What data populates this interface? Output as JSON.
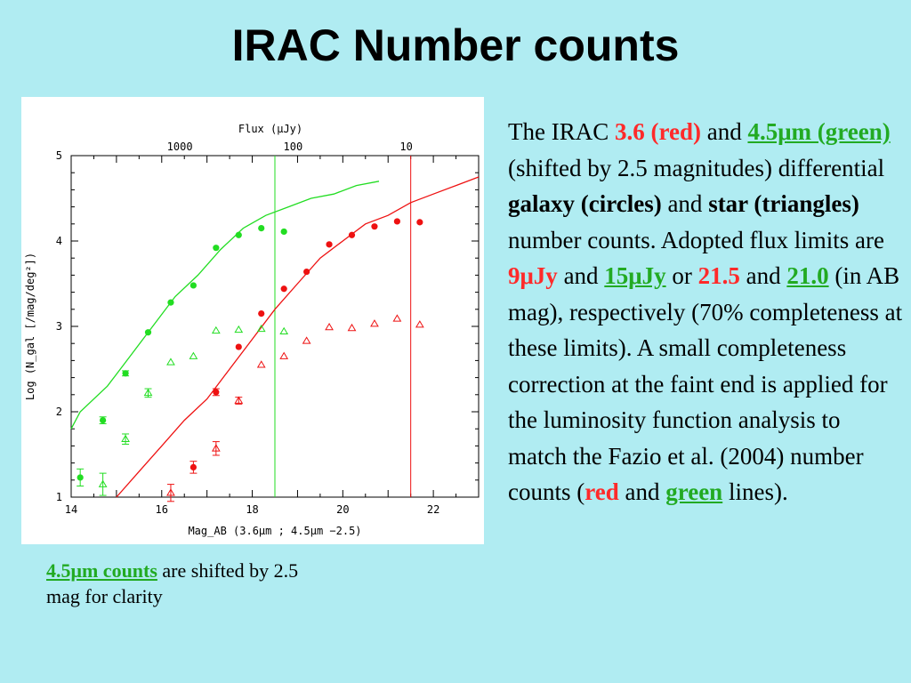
{
  "title": "IRAC Number counts",
  "caption": {
    "highlight": "4.5μm counts",
    "rest": " are shifted by 2.5 mag for clarity"
  },
  "body": {
    "s1": "The IRAC ",
    "red1": "3.6 (red)",
    "s2": " and ",
    "green1": "4.5μm (green)",
    "s3": " (shifted by 2.5 magnitudes) differential ",
    "b1": "galaxy (circles)",
    "s4": " and ",
    "b2": "star (triangles)",
    "s5": " number counts. Adopted flux limits are ",
    "red2": "9μJy",
    "s6": " and ",
    "green2": "15μJy",
    "s7": " or ",
    "red3": "21.5",
    "s8": " and ",
    "green3": "21.0",
    "s9": " (in AB mag), respectively (70% completeness at these limits). A small completeness correction at the faint end is applied for the luminosity function analysis  to match the Fazio et al. (2004) number counts (",
    "red4": "red",
    "s10": " and ",
    "green4": "green",
    "s11": " lines)."
  },
  "colors": {
    "red": "#ee1111",
    "green": "#22dd22",
    "background": "#b0ecf2"
  },
  "chart_data": {
    "type": "scatter",
    "xlabel": "Mag_AB (3.6μm ; 4.5μm −2.5)",
    "ylabel": "Log (N_gal [/mag/deg²])",
    "top_axis_label": "Flux (μJy)",
    "xlim": [
      14,
      23
    ],
    "ylim": [
      1,
      5
    ],
    "x_ticks": [
      "14",
      "16",
      "18",
      "20",
      "22"
    ],
    "y_ticks": [
      "1",
      "2",
      "3",
      "4",
      "5"
    ],
    "top_ticks": [
      {
        "label": "1000",
        "flux": 1000
      },
      {
        "label": "100",
        "flux": 100
      },
      {
        "label": "10",
        "flux": 10
      }
    ],
    "series": [
      {
        "color": "green",
        "marker": "circle",
        "x": [
          14.2,
          14.7,
          15.2,
          15.7,
          16.2,
          16.7,
          17.2,
          17.7,
          18.2,
          18.7
        ],
        "y": [
          1.23,
          1.9,
          2.45,
          2.93,
          3.28,
          3.48,
          3.92,
          4.07,
          4.15,
          4.11
        ],
        "yerr": [
          0.1,
          0.04,
          0.03,
          0,
          0,
          0,
          0,
          0,
          0,
          0
        ]
      },
      {
        "color": "green",
        "marker": "triangle",
        "x": [
          14.7,
          15.2,
          15.7,
          16.2,
          16.7,
          17.2,
          17.7,
          18.2,
          18.7
        ],
        "y": [
          1.15,
          1.68,
          2.22,
          2.58,
          2.65,
          2.95,
          2.96,
          2.97,
          2.94
        ],
        "yerr": [
          0.13,
          0.06,
          0.05,
          0,
          0,
          0,
          0,
          0,
          0
        ]
      },
      {
        "color": "red",
        "marker": "circle",
        "x": [
          16.7,
          17.2,
          17.7,
          18.2,
          18.7,
          19.2,
          19.7,
          20.2,
          20.7,
          21.2,
          21.7
        ],
        "y": [
          1.35,
          2.23,
          2.76,
          3.15,
          3.44,
          3.64,
          3.96,
          4.07,
          4.17,
          4.23,
          4.22
        ],
        "yerr": [
          0.07,
          0.04,
          0,
          0,
          0,
          0,
          0,
          0,
          0,
          0,
          0
        ]
      },
      {
        "color": "red",
        "marker": "triangle",
        "x": [
          16.2,
          17.2,
          17.7,
          18.2,
          18.7,
          19.2,
          19.7,
          20.2,
          20.7,
          21.2,
          21.7
        ],
        "y": [
          1.05,
          1.57,
          2.13,
          2.55,
          2.65,
          2.83,
          2.99,
          2.98,
          3.03,
          3.09,
          3.02
        ],
        "yerr": [
          0.1,
          0.08,
          0.04,
          0,
          0,
          0,
          0,
          0,
          0,
          0,
          0
        ]
      }
    ],
    "lines": [
      {
        "color": "green",
        "x": [
          14.0,
          14.2,
          14.8,
          15.3,
          15.8,
          16.3,
          16.8,
          17.3,
          17.8,
          18.3,
          18.8,
          19.3,
          19.8,
          20.3,
          20.8
        ],
        "y": [
          1.8,
          2.0,
          2.3,
          2.65,
          3.0,
          3.35,
          3.6,
          3.9,
          4.15,
          4.3,
          4.4,
          4.5,
          4.55,
          4.65,
          4.7
        ]
      },
      {
        "color": "red",
        "x": [
          15.0,
          15.5,
          16.0,
          16.5,
          17.0,
          17.5,
          18.0,
          18.5,
          19.0,
          19.5,
          20.0,
          20.5,
          21.0,
          21.5,
          22.0,
          22.5,
          23.0
        ],
        "y": [
          1.0,
          1.3,
          1.6,
          1.9,
          2.15,
          2.5,
          2.85,
          3.2,
          3.5,
          3.8,
          4.0,
          4.2,
          4.3,
          4.45,
          4.55,
          4.65,
          4.75
        ]
      }
    ],
    "limits": [
      {
        "color": "green",
        "x": 18.5
      },
      {
        "color": "red",
        "x": 21.5
      }
    ]
  }
}
